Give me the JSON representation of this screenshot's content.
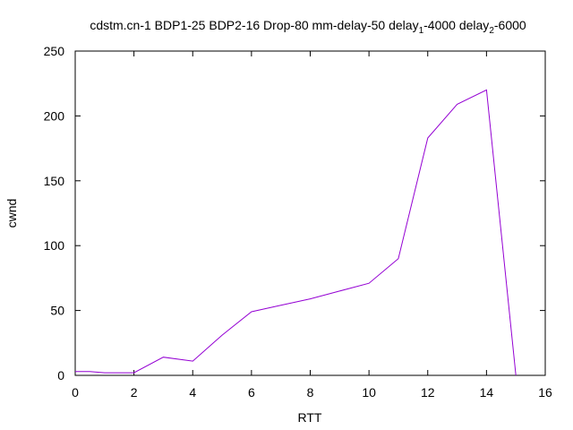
{
  "chart_data": {
    "type": "line",
    "title_parts": {
      "main": "cdstm.cn-1 BDP1-25 BDP2-16 Drop-80 mm-delay-50 delay",
      "sub1": "1",
      "mid": "-4000 delay",
      "sub2": "2",
      "end": "-6000"
    },
    "xlabel": "RTT",
    "ylabel": "cwnd",
    "xlim": [
      0,
      16
    ],
    "ylim": [
      0,
      250
    ],
    "x_ticks": [
      0,
      2,
      4,
      6,
      8,
      10,
      12,
      14,
      16
    ],
    "y_ticks": [
      0,
      50,
      100,
      150,
      200,
      250
    ],
    "grid": false,
    "legend": "none",
    "series": [
      {
        "color": "#9400d3",
        "x": [
          0,
          0.5,
          1,
          2,
          3,
          4,
          5,
          6,
          7,
          8,
          9,
          10,
          11,
          12,
          13,
          14,
          15
        ],
        "y": [
          3,
          3,
          2,
          2,
          14,
          11,
          31,
          49,
          54,
          59,
          65,
          71,
          90,
          183,
          209,
          220,
          0
        ]
      }
    ]
  }
}
